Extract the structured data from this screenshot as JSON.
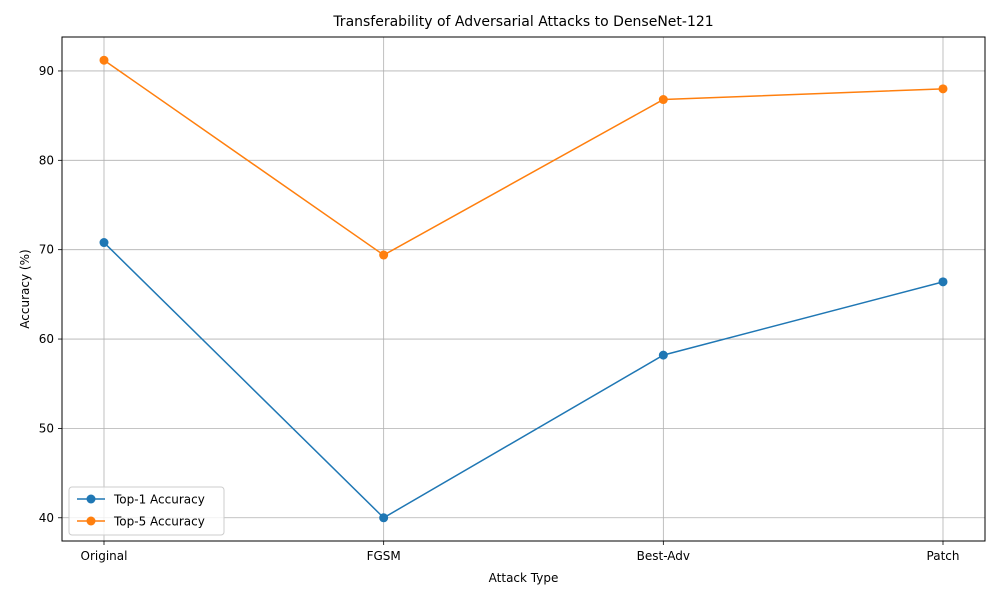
{
  "chart_data": {
    "type": "line",
    "title": "Transferability of Adversarial Attacks to DenseNet-121",
    "xlabel": "Attack Type",
    "ylabel": "Accuracy (%)",
    "categories": [
      "Original",
      "FGSM",
      "Best-Adv",
      "Patch"
    ],
    "series": [
      {
        "name": "Top-1 Accuracy",
        "color": "#1f77b4",
        "marker": "circle",
        "values": [
          70.8,
          40.0,
          58.2,
          66.4
        ]
      },
      {
        "name": "Top-5 Accuracy",
        "color": "#ff7f0e",
        "marker": "circle",
        "values": [
          91.2,
          69.4,
          86.8,
          88.0
        ]
      }
    ],
    "ylim": [
      37.4,
      93.8
    ],
    "yticks": [
      40,
      50,
      60,
      70,
      80,
      90
    ],
    "grid": true,
    "legend": "lower-left"
  }
}
